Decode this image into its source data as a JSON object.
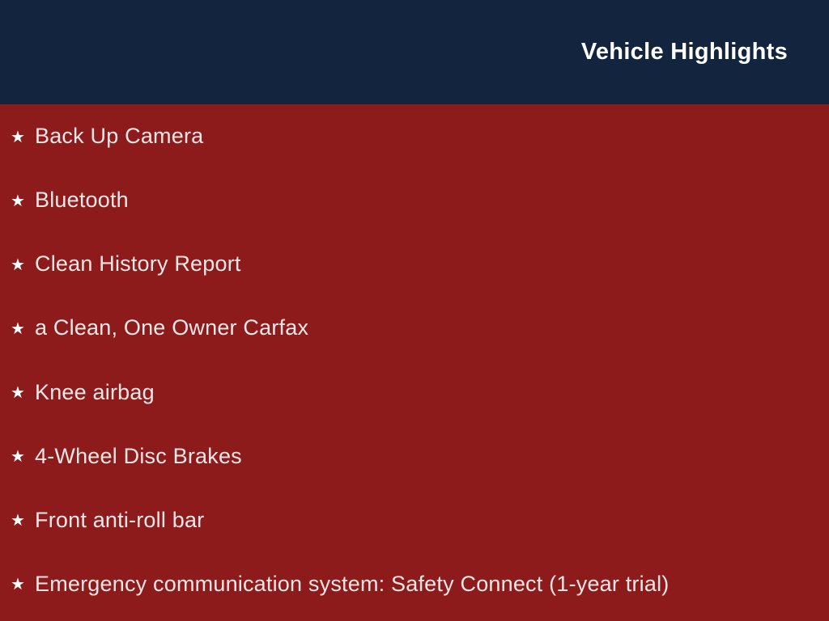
{
  "colors": {
    "header_bg": "#12243e",
    "body_bg": "#8e1b1b",
    "title_color": "#ffffff",
    "item_color": "#f2e7e7",
    "bullet_color": "#ffffff"
  },
  "header": {
    "title": "Vehicle Highlights"
  },
  "list": {
    "bullet_glyph": "★",
    "items": [
      {
        "text": "Back Up Camera"
      },
      {
        "text": "Bluetooth"
      },
      {
        "text": "Clean History Report"
      },
      {
        "text": "a Clean, One Owner Carfax"
      },
      {
        "text": "Knee airbag"
      },
      {
        "text": "4-Wheel Disc Brakes"
      },
      {
        "text": "Front anti-roll bar"
      },
      {
        "text": "Emergency communication system: Safety Connect (1-year trial)"
      }
    ]
  }
}
